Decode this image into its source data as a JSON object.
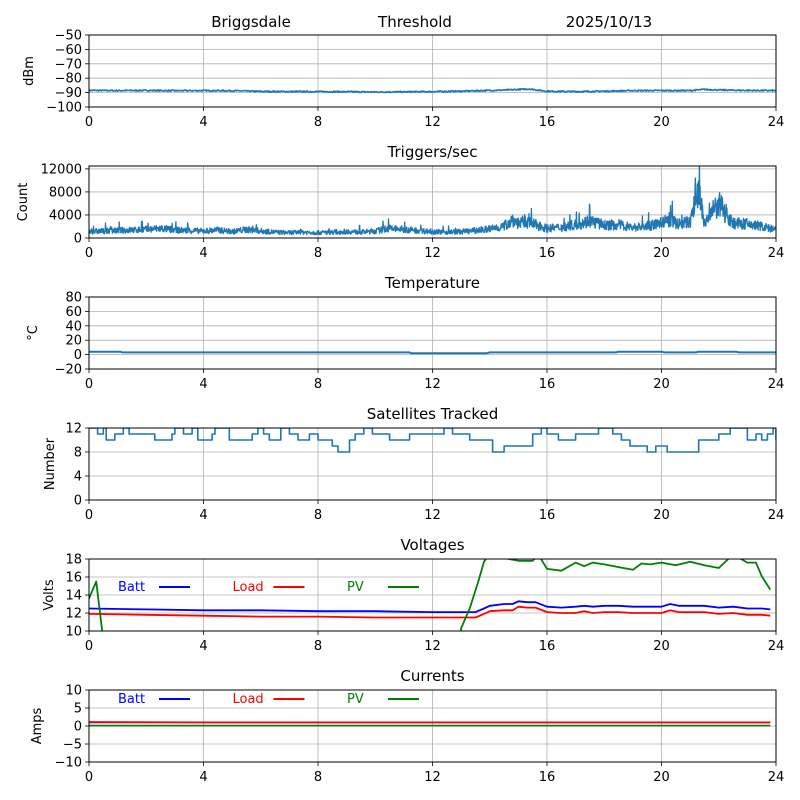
{
  "figure": {
    "header": {
      "site": "Briggsdale",
      "mode": "Threshold",
      "date": "2025/10/13"
    }
  },
  "chart_data": [
    {
      "id": "signal",
      "type": "line",
      "title": "",
      "xlabel": "",
      "ylabel": "dBm",
      "xlim": [
        0,
        24
      ],
      "ylim": [
        -100,
        -50
      ],
      "xticks": [
        0,
        4,
        8,
        12,
        16,
        20,
        24
      ],
      "yticks": [
        -100,
        -90,
        -80,
        -70,
        -60,
        -50
      ],
      "ytick_labels": [
        "−100",
        "−90",
        "−80",
        "−70",
        "−60",
        "−50"
      ],
      "grid": true,
      "series": [
        {
          "name": "dBm",
          "color": "#1f77b4",
          "x": [
            0,
            1,
            2,
            3,
            4,
            5,
            6,
            7,
            8,
            9,
            10,
            11,
            12,
            13,
            14,
            14.5,
            15,
            15.4,
            15.8,
            16,
            17,
            18,
            19,
            20,
            21,
            21.5,
            22,
            23,
            24
          ],
          "y": [
            -88.5,
            -88.6,
            -88.5,
            -88.7,
            -88.6,
            -88.7,
            -89.2,
            -89.3,
            -89.3,
            -89.4,
            -89.6,
            -89.5,
            -89.3,
            -89,
            -88.5,
            -88.3,
            -87.8,
            -87.5,
            -88.6,
            -89,
            -89.3,
            -89,
            -88.6,
            -88.6,
            -88.6,
            -87.8,
            -88.2,
            -88.5,
            -88.6
          ]
        }
      ]
    },
    {
      "id": "triggers",
      "type": "line",
      "title": "Triggers/sec",
      "xlabel": "",
      "ylabel": "Count",
      "xlim": [
        0,
        24
      ],
      "ylim": [
        0,
        12500
      ],
      "xticks": [
        0,
        4,
        8,
        12,
        16,
        20,
        24
      ],
      "yticks": [
        0,
        4000,
        8000,
        12000
      ],
      "ytick_labels": [
        "0",
        "4000",
        "8000",
        "12000"
      ],
      "grid": true,
      "series": [
        {
          "name": "Count",
          "color": "#1f77b4",
          "x": [
            0,
            0.5,
            1,
            1.5,
            2,
            2.5,
            3,
            3.5,
            4,
            4.5,
            5,
            5.5,
            6,
            6.5,
            7,
            7.5,
            8,
            8.5,
            9,
            9.5,
            10,
            10.5,
            11,
            11.5,
            12,
            12.5,
            13,
            13.5,
            14,
            14.5,
            14.8,
            15,
            15.3,
            15.6,
            16,
            16.5,
            17,
            17.5,
            18,
            18.5,
            19,
            19.5,
            20,
            20.3,
            20.6,
            21,
            21.3,
            21.5,
            21.8,
            22,
            22.5,
            23,
            23.5,
            24
          ],
          "y": [
            1200,
            1300,
            1400,
            1500,
            1600,
            1800,
            1500,
            1400,
            1300,
            1500,
            1200,
            1600,
            1300,
            1100,
            1000,
            1100,
            1000,
            1100,
            1200,
            1100,
            1300,
            1800,
            1600,
            1400,
            1200,
            1100,
            1200,
            1400,
            1700,
            2200,
            3500,
            2800,
            3000,
            2500,
            1800,
            2000,
            2500,
            3200,
            2400,
            2500,
            2000,
            2200,
            2800,
            3500,
            2600,
            3000,
            9200,
            2500,
            5000,
            6300,
            2800,
            2600,
            2200,
            1500
          ]
        }
      ]
    },
    {
      "id": "temperature",
      "type": "line",
      "title": "Temperature",
      "xlabel": "",
      "ylabel": "°C",
      "xlim": [
        0,
        24
      ],
      "ylim": [
        -20,
        80
      ],
      "xticks": [
        0,
        4,
        8,
        12,
        16,
        20,
        24
      ],
      "yticks": [
        -20,
        0,
        20,
        40,
        60,
        80
      ],
      "ytick_labels": [
        "−20",
        "0",
        "20",
        "40",
        "60",
        "80"
      ],
      "grid": true,
      "series": [
        {
          "name": "Temperature",
          "color": "#1f77b4",
          "x": [
            0,
            1.1,
            1.15,
            11.2,
            11.25,
            13.9,
            14,
            18.4,
            18.5,
            20,
            20.1,
            21.2,
            21.3,
            22.6,
            22.7,
            23.7,
            23.8,
            24
          ],
          "y": [
            4,
            4,
            3,
            3,
            2,
            2,
            3,
            3,
            4,
            4,
            3,
            3,
            4,
            4,
            3,
            3,
            3,
            3
          ]
        }
      ]
    },
    {
      "id": "satellites",
      "type": "line",
      "title": "Satellites Tracked",
      "xlabel": "",
      "ylabel": "Number",
      "xlim": [
        0,
        24
      ],
      "ylim": [
        0,
        12
      ],
      "xticks": [
        0,
        4,
        8,
        12,
        16,
        20,
        24
      ],
      "yticks": [
        0,
        4,
        8,
        12
      ],
      "ytick_labels": [
        "0",
        "4",
        "8",
        "12"
      ],
      "grid": true,
      "series": [
        {
          "name": "Satellites",
          "color": "#1f77b4",
          "x": [
            0,
            0.3,
            0.5,
            0.6,
            0.9,
            1.2,
            1.4,
            2.3,
            2.9,
            3.0,
            3.3,
            3.6,
            3.8,
            4.3,
            4.4,
            4.9,
            5.7,
            5.9,
            6.1,
            6.3,
            6.7,
            7.0,
            7.3,
            7.7,
            8.0,
            8.5,
            8.7,
            9.1,
            9.3,
            9.6,
            9.9,
            10.3,
            10.5,
            11.2,
            11.6,
            12.0,
            12.4,
            12.7,
            13.3,
            14.1,
            14.5,
            15.3,
            15.5,
            15.8,
            16.0,
            16.4,
            17.0,
            17.2,
            17.8,
            18.3,
            18.6,
            18.9,
            19.5,
            19.8,
            20.2,
            21.3,
            22.0,
            22.4,
            23.0,
            23.3,
            23.5,
            23.7,
            23.9,
            24.0
          ],
          "y": [
            12,
            11,
            12,
            10,
            11,
            12,
            11,
            10,
            11,
            12,
            11,
            12,
            10,
            11,
            12,
            10,
            11,
            12,
            11,
            10,
            12,
            11,
            10,
            11,
            10,
            9,
            8,
            10,
            11,
            12,
            11,
            11,
            10,
            11,
            11,
            11,
            12,
            11,
            10,
            8,
            9,
            9,
            11,
            12,
            11,
            10,
            11,
            11,
            12,
            11,
            10,
            9,
            8,
            9,
            8,
            10,
            11,
            12,
            10,
            11,
            10,
            11,
            12,
            10
          ]
        }
      ]
    },
    {
      "id": "voltages",
      "type": "line",
      "title": "Voltages",
      "xlabel": "",
      "ylabel": "Volts",
      "xlim": [
        0,
        24
      ],
      "ylim": [
        10,
        18
      ],
      "xticks": [
        0,
        4,
        8,
        12,
        16,
        20,
        24
      ],
      "yticks": [
        10,
        12,
        14,
        16,
        18
      ],
      "ytick_labels": [
        "10",
        "12",
        "14",
        "16",
        "18"
      ],
      "grid": true,
      "legend": {
        "placement": "top-left inline",
        "entries": [
          {
            "label": "Batt",
            "color": "#0000ff"
          },
          {
            "label": "Load",
            "color": "#ff0000"
          },
          {
            "label": "PV",
            "color": "#008000"
          }
        ]
      },
      "series": [
        {
          "name": "Batt",
          "color": "#0000ff",
          "x": [
            0,
            2,
            4,
            6,
            8,
            10,
            12,
            13,
            13.5,
            13.8,
            14,
            14.5,
            14.8,
            15,
            15.3,
            15.6,
            16,
            16.5,
            17,
            17.3,
            17.6,
            18,
            18.5,
            19,
            19.5,
            20,
            20.3,
            20.6,
            21,
            21.5,
            22,
            22.5,
            23,
            23.5,
            23.8
          ],
          "y": [
            12.5,
            12.4,
            12.3,
            12.3,
            12.2,
            12.2,
            12.1,
            12.1,
            12.1,
            12.5,
            12.8,
            13.0,
            13.0,
            13.3,
            13.2,
            13.2,
            12.7,
            12.6,
            12.7,
            12.8,
            12.7,
            12.8,
            12.8,
            12.7,
            12.7,
            12.7,
            13.0,
            12.8,
            12.8,
            12.8,
            12.6,
            12.7,
            12.5,
            12.5,
            12.4
          ]
        },
        {
          "name": "Load",
          "color": "#ff0000",
          "x": [
            0,
            2,
            4,
            6,
            8,
            10,
            12,
            13,
            13.5,
            13.8,
            14,
            14.5,
            14.8,
            15,
            15.3,
            15.6,
            16,
            16.5,
            17,
            17.3,
            17.6,
            18,
            18.5,
            19,
            19.5,
            20,
            20.3,
            20.6,
            21,
            21.5,
            22,
            22.5,
            23,
            23.5,
            23.8
          ],
          "y": [
            11.9,
            11.8,
            11.7,
            11.6,
            11.6,
            11.5,
            11.5,
            11.5,
            11.5,
            11.9,
            12.2,
            12.3,
            12.3,
            12.7,
            12.6,
            12.6,
            12.1,
            12.0,
            12.0,
            12.2,
            12.0,
            12.1,
            12.1,
            12.0,
            12.0,
            12.0,
            12.3,
            12.1,
            12.1,
            12.1,
            11.9,
            12.0,
            11.8,
            11.8,
            11.7
          ]
        },
        {
          "name": "PV",
          "color": "#008000",
          "x": [
            0,
            0.25,
            0.5,
            1,
            12.9,
            13,
            13.3,
            13.6,
            13.8,
            14,
            14.5,
            15,
            15.5,
            15.7,
            16,
            16.5,
            17,
            17.3,
            17.6,
            18,
            18.5,
            19,
            19.3,
            19.6,
            20,
            20.5,
            21,
            21.5,
            22,
            22.5,
            23,
            23.3,
            23.5,
            23.8
          ],
          "y": [
            13.6,
            15.5,
            9,
            5,
            5,
            10.3,
            12.5,
            15.5,
            17.7,
            18.6,
            18.1,
            17.8,
            17.8,
            18.5,
            16.9,
            16.7,
            17.6,
            17.2,
            17.6,
            17.4,
            17.1,
            16.8,
            17.5,
            17.4,
            17.6,
            17.3,
            17.7,
            17.3,
            17.0,
            18.5,
            17.6,
            17.6,
            16.1,
            14.6
          ]
        }
      ]
    },
    {
      "id": "currents",
      "type": "line",
      "title": "Currents",
      "xlabel": "",
      "ylabel": "Amps",
      "xlim": [
        0,
        24
      ],
      "ylim": [
        -10,
        10
      ],
      "xticks": [
        0,
        4,
        8,
        12,
        16,
        20,
        24
      ],
      "yticks": [
        -10,
        -5,
        0,
        5,
        10
      ],
      "ytick_labels": [
        "−10",
        "−5",
        "0",
        "5",
        "10"
      ],
      "grid": true,
      "legend": {
        "placement": "top-left inline",
        "entries": [
          {
            "label": "Batt",
            "color": "#0000ff"
          },
          {
            "label": "Load",
            "color": "#ff0000"
          },
          {
            "label": "PV",
            "color": "#008000"
          }
        ]
      },
      "series": [
        {
          "name": "Batt",
          "color": "#0000ff",
          "x": [
            0,
            23.8
          ],
          "y": [
            1.0,
            1.0
          ]
        },
        {
          "name": "Load",
          "color": "#ff0000",
          "x": [
            0,
            4,
            8,
            12,
            16,
            20,
            23.8
          ],
          "y": [
            1.1,
            1.0,
            1.0,
            1.0,
            1.0,
            1.0,
            1.0
          ]
        },
        {
          "name": "PV",
          "color": "#008000",
          "x": [
            0,
            23.8
          ],
          "y": [
            0.1,
            0.1
          ]
        }
      ]
    }
  ]
}
